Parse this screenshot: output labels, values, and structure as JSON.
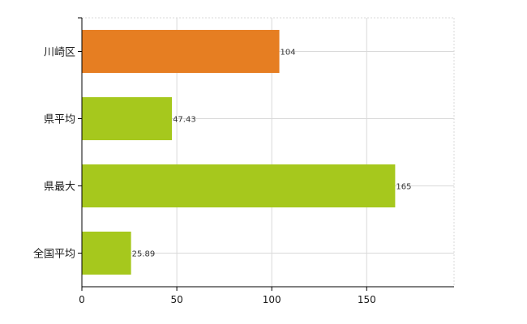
{
  "chart_data": {
    "type": "bar",
    "orientation": "horizontal",
    "categories": [
      "川崎区",
      "県平均",
      "県最大",
      "全国平均"
    ],
    "values": [
      104,
      47.43,
      165,
      25.89
    ],
    "value_labels": [
      "104",
      "47.43",
      "165",
      "25.89"
    ],
    "bar_colors": [
      "#e67e22",
      "#a6c81d",
      "#a6c81d",
      "#a6c81d"
    ],
    "xlim": [
      0,
      196
    ],
    "xticks": [
      0,
      50,
      100,
      150
    ],
    "xtick_labels": [
      "0",
      "50",
      "100",
      "150"
    ],
    "grid": true,
    "title": "",
    "xlabel": "",
    "ylabel": ""
  }
}
